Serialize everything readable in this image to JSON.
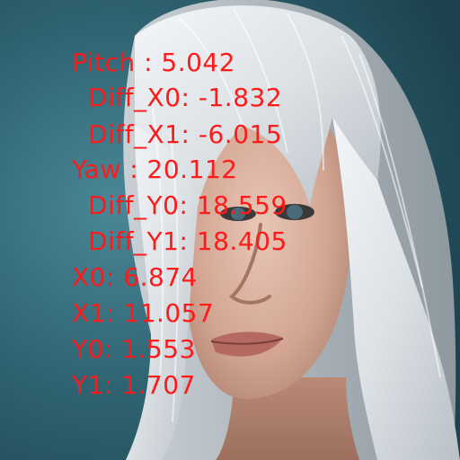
{
  "scene": {
    "subject": "portrait-woman-white-hair",
    "background_color": "#2e6170",
    "hair_color": "#e9ecef",
    "skin_color": "#d9b3a3",
    "overlay_color": "#ff1a1a"
  },
  "overlay": {
    "lines": [
      "Pitch : 5.042",
      "Diff_X0: -1.832",
      "Diff_X1: -6.015",
      "Yaw : 20.112",
      "Diff_Y0: 18.559",
      "Diff_Y1: 18.405",
      "X0: 6.874",
      "X1: 11.057",
      "Y0: 1.553",
      "Y1: 1.707"
    ]
  }
}
